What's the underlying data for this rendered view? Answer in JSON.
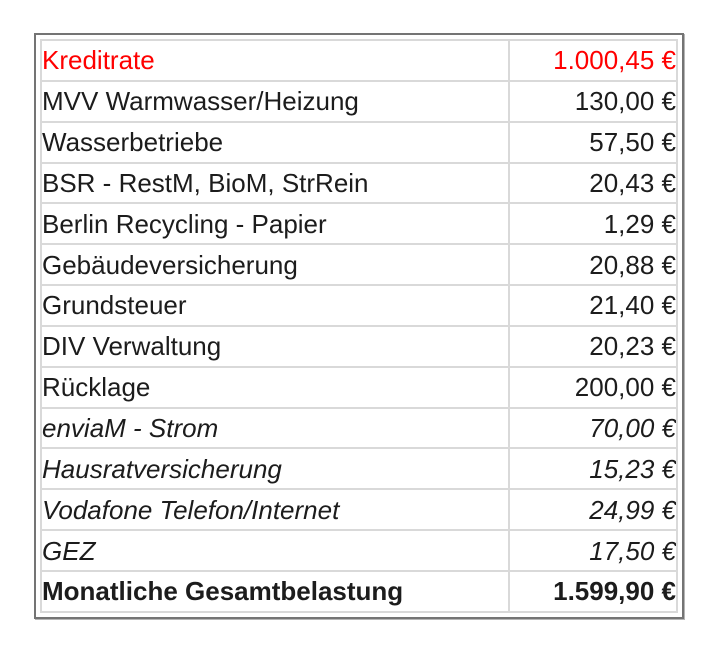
{
  "table": {
    "title_semantic": "monthly-costs-overview",
    "rows": [
      {
        "label": "Kreditrate",
        "value": "1.000,45 €",
        "style": "red"
      },
      {
        "label": "MVV Warmwasser/Heizung",
        "value": "130,00 €",
        "style": "normal"
      },
      {
        "label": "Wasserbetriebe",
        "value": "57,50 €",
        "style": "normal"
      },
      {
        "label": "BSR - RestM, BioM, StrRein",
        "value": "20,43 €",
        "style": "normal"
      },
      {
        "label": "Berlin Recycling - Papier",
        "value": "1,29 €",
        "style": "normal"
      },
      {
        "label": "Gebäudeversicherung",
        "value": "20,88 €",
        "style": "normal"
      },
      {
        "label": "Grundsteuer",
        "value": "21,40 €",
        "style": "normal"
      },
      {
        "label": "DIV Verwaltung",
        "value": "20,23 €",
        "style": "normal"
      },
      {
        "label": "Rücklage",
        "value": "200,00 €",
        "style": "normal"
      },
      {
        "label": "enviaM - Strom",
        "value": "70,00 €",
        "style": "italic"
      },
      {
        "label": "Hausratversicherung",
        "value": "15,23 €",
        "style": "italic"
      },
      {
        "label": "Vodafone Telefon/Internet",
        "value": "24,99 €",
        "style": "italic"
      },
      {
        "label": "GEZ",
        "value": "17,50 €",
        "style": "italic"
      },
      {
        "label": "Monatliche Gesamtbelastung",
        "value": "1.599,90 €",
        "style": "bold"
      }
    ],
    "colors": {
      "highlight_red": "#ff0000",
      "text": "#1c1c1c",
      "outer_border": "#747474",
      "grid_border": "#d9d9d9",
      "background": "#ffffff"
    }
  }
}
